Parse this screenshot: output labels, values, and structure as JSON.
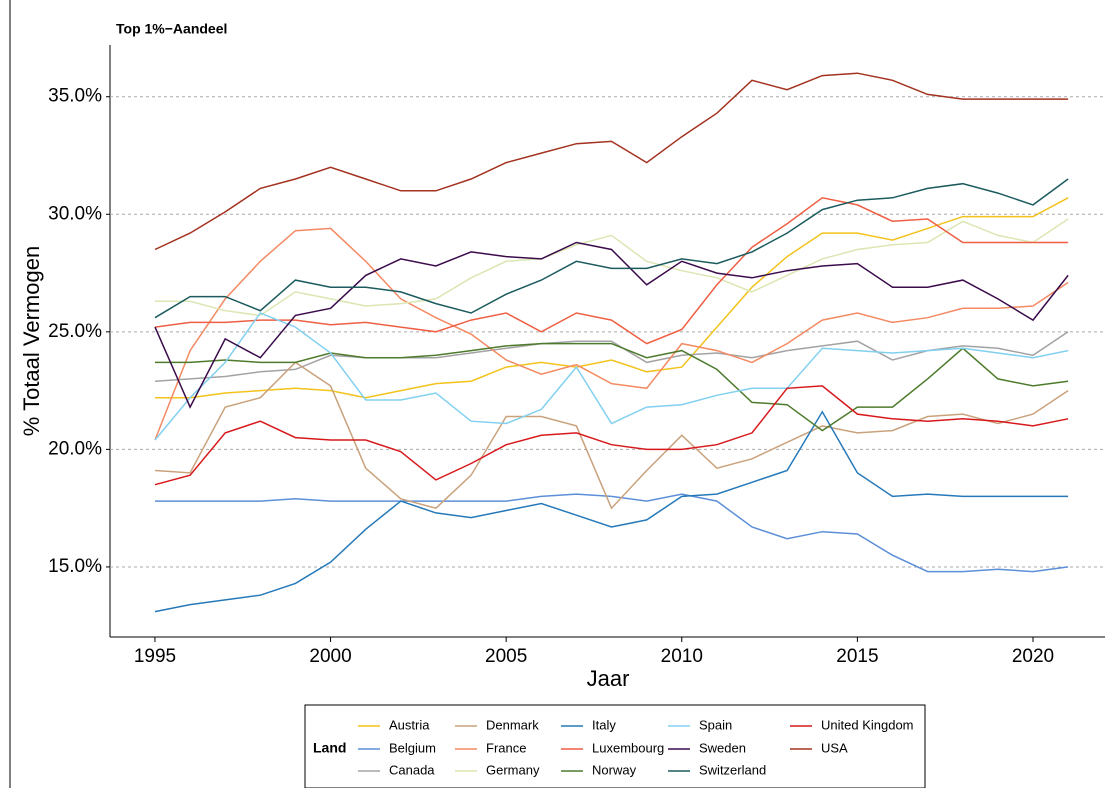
{
  "chart_data": {
    "type": "line",
    "title": "Top 1%−Aandeel",
    "x_label": "Jaar",
    "y_label": "% Totaal Vermogen",
    "legend_title": "Land",
    "legend_position": "bottom",
    "grid": true,
    "x": [
      1995,
      1996,
      1997,
      1998,
      1999,
      2000,
      2001,
      2002,
      2003,
      2004,
      2005,
      2006,
      2007,
      2008,
      2009,
      2010,
      2011,
      2012,
      2013,
      2014,
      2015,
      2016,
      2017,
      2018,
      2019,
      2020,
      2021
    ],
    "xlim": [
      1993.72,
      2022.05
    ],
    "xticks": [
      1995,
      2000,
      2005,
      2010,
      2015,
      2020
    ],
    "ylim": [
      12.02,
      37.2
    ],
    "yticks": [
      {
        "value": 15,
        "label": "15.0%"
      },
      {
        "value": 20,
        "label": "20.0%"
      },
      {
        "value": 25,
        "label": "25.0%"
      },
      {
        "value": 30,
        "label": "30.0%"
      },
      {
        "value": 35,
        "label": "35.0%"
      }
    ],
    "series": [
      {
        "name": "Austria",
        "color": "#f3c21b",
        "values": [
          22.2,
          22.2,
          22.4,
          22.5,
          22.6,
          22.5,
          22.2,
          22.5,
          22.8,
          22.9,
          23.5,
          23.7,
          23.5,
          23.8,
          23.3,
          23.5,
          25.2,
          26.9,
          28.2,
          29.2,
          29.2,
          28.9,
          29.4,
          29.9,
          29.9,
          29.9,
          30.7
        ]
      },
      {
        "name": "Belgium",
        "color": "#5c8fd8",
        "values": [
          17.8,
          17.8,
          17.8,
          17.8,
          17.9,
          17.8,
          17.8,
          17.8,
          17.8,
          17.8,
          17.8,
          18.0,
          18.1,
          18.0,
          17.8,
          18.1,
          17.8,
          16.7,
          16.2,
          16.5,
          16.4,
          15.5,
          14.8,
          14.8,
          14.9,
          14.8,
          15.0
        ]
      },
      {
        "name": "Canada",
        "color": "#a3a3a3",
        "values": [
          22.9,
          23.0,
          23.1,
          23.3,
          23.4,
          24.0,
          23.9,
          23.9,
          23.9,
          24.1,
          24.3,
          24.5,
          24.6,
          24.6,
          23.7,
          24.0,
          24.1,
          23.9,
          24.2,
          24.4,
          24.6,
          23.8,
          24.2,
          24.4,
          24.3,
          24.0,
          25.0
        ]
      },
      {
        "name": "Denmark",
        "color": "#c9a27c",
        "values": [
          19.1,
          19.0,
          21.8,
          22.2,
          23.7,
          22.7,
          19.2,
          17.9,
          17.5,
          18.9,
          21.4,
          21.4,
          21.0,
          17.5,
          19.1,
          20.6,
          19.2,
          19.6,
          20.3,
          21.0,
          20.7,
          20.8,
          21.4,
          21.5,
          21.1,
          21.5,
          22.5
        ]
      },
      {
        "name": "France",
        "color": "#f48a62",
        "values": [
          20.4,
          24.2,
          26.4,
          28.0,
          29.3,
          29.4,
          28.0,
          26.4,
          25.6,
          24.9,
          23.8,
          23.2,
          23.6,
          22.8,
          22.6,
          24.5,
          24.2,
          23.7,
          24.5,
          25.5,
          25.8,
          25.4,
          25.6,
          26.0,
          26.0,
          26.1,
          27.1
        ]
      },
      {
        "name": "Germany",
        "color": "#dbe6b2",
        "values": [
          26.3,
          26.3,
          25.9,
          25.7,
          26.7,
          26.4,
          26.1,
          26.2,
          26.4,
          27.3,
          28.0,
          28.1,
          28.7,
          29.1,
          28.0,
          27.6,
          27.3,
          26.7,
          27.4,
          28.1,
          28.5,
          28.7,
          28.8,
          29.7,
          29.1,
          28.8,
          29.8
        ]
      },
      {
        "name": "Italy",
        "color": "#2679b9",
        "values": [
          13.1,
          13.4,
          13.6,
          13.8,
          14.3,
          15.2,
          16.6,
          17.8,
          17.3,
          17.1,
          17.4,
          17.7,
          17.2,
          16.7,
          17.0,
          18.0,
          18.1,
          18.6,
          19.1,
          21.6,
          19.0,
          18.0,
          18.1,
          18.0,
          18.0,
          18.0,
          18.0
        ]
      },
      {
        "name": "Luxembourg",
        "color": "#ef5f44",
        "values": [
          25.2,
          25.4,
          25.4,
          25.5,
          25.5,
          25.3,
          25.4,
          25.2,
          25.0,
          25.5,
          25.8,
          25.0,
          25.8,
          25.5,
          24.5,
          25.1,
          27.0,
          28.6,
          29.6,
          30.7,
          30.4,
          29.7,
          29.8,
          28.8,
          28.8,
          28.8,
          28.8
        ]
      },
      {
        "name": "Norway",
        "color": "#4d7b2c",
        "values": [
          23.7,
          23.7,
          23.8,
          23.7,
          23.7,
          24.1,
          23.9,
          23.9,
          24.0,
          24.2,
          24.4,
          24.5,
          24.5,
          24.5,
          23.9,
          24.2,
          23.4,
          22.0,
          21.9,
          20.8,
          21.8,
          21.8,
          23.0,
          24.3,
          23.0,
          22.7,
          22.9
        ]
      },
      {
        "name": "Spain",
        "color": "#82d0f0",
        "values": [
          20.4,
          22.2,
          23.7,
          25.8,
          25.2,
          24.1,
          22.1,
          22.1,
          22.4,
          21.2,
          21.1,
          21.7,
          23.5,
          21.1,
          21.8,
          21.9,
          22.3,
          22.6,
          22.6,
          24.3,
          24.2,
          24.1,
          24.2,
          24.3,
          24.1,
          23.9,
          24.2
        ]
      },
      {
        "name": "Sweden",
        "color": "#3b0b4b",
        "values": [
          25.2,
          21.8,
          24.7,
          23.9,
          25.7,
          26.0,
          27.4,
          28.1,
          27.8,
          28.4,
          28.2,
          28.1,
          28.8,
          28.5,
          27.0,
          28.0,
          27.5,
          27.3,
          27.6,
          27.8,
          27.9,
          26.9,
          26.9,
          27.2,
          26.4,
          25.5,
          27.4
        ]
      },
      {
        "name": "Switzerland",
        "color": "#1b5b5e",
        "values": [
          25.6,
          26.5,
          26.5,
          25.9,
          27.2,
          26.9,
          26.9,
          26.7,
          26.2,
          25.8,
          26.6,
          27.2,
          28.0,
          27.7,
          27.7,
          28.1,
          27.9,
          28.4,
          29.2,
          30.2,
          30.6,
          30.7,
          31.1,
          31.3,
          30.9,
          30.4,
          31.5
        ]
      },
      {
        "name": "United Kingdom",
        "color": "#d7191c",
        "values": [
          18.5,
          18.9,
          20.7,
          21.2,
          20.5,
          20.4,
          20.4,
          19.9,
          18.7,
          19.4,
          20.2,
          20.6,
          20.7,
          20.2,
          20.0,
          20.0,
          20.2,
          20.7,
          22.6,
          22.7,
          21.5,
          21.3,
          21.2,
          21.3,
          21.2,
          21.0,
          21.3
        ]
      },
      {
        "name": "USA",
        "color": "#a3321f",
        "values": [
          28.5,
          29.2,
          30.1,
          31.1,
          31.5,
          32.0,
          31.5,
          31.0,
          31.0,
          31.5,
          32.2,
          32.6,
          33.0,
          33.1,
          32.2,
          33.3,
          34.3,
          35.7,
          35.3,
          35.9,
          36.0,
          35.7,
          35.1,
          34.9,
          34.9,
          34.9,
          34.9
        ]
      }
    ]
  }
}
